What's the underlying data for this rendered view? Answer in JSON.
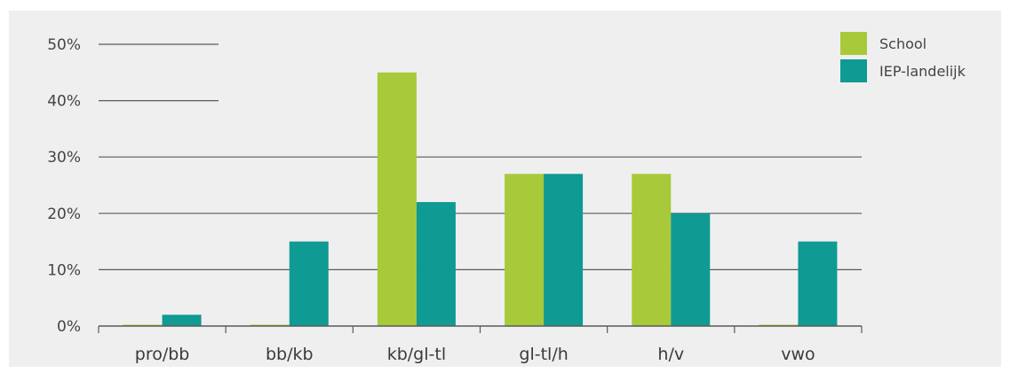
{
  "chart_data": {
    "type": "bar",
    "categories": [
      "pro/bb",
      "bb/kb",
      "kb/gl-tl",
      "gl-tl/h",
      "h/v",
      "vwo"
    ],
    "series": [
      {
        "name": "School",
        "values": [
          0,
          0,
          45,
          27,
          27,
          0
        ],
        "color": "#a8c93a"
      },
      {
        "name": "IEP-landelijk",
        "values": [
          2,
          15,
          22,
          27,
          20,
          15
        ],
        "color": "#0f9a93"
      }
    ],
    "y_ticks": [
      "0%",
      "10%",
      "20%",
      "30%",
      "40%",
      "50%"
    ],
    "ylim": [
      0,
      50
    ],
    "unit": "%",
    "grid": true,
    "legend_position": "top-right",
    "title": "",
    "xlabel": "",
    "ylabel": ""
  }
}
